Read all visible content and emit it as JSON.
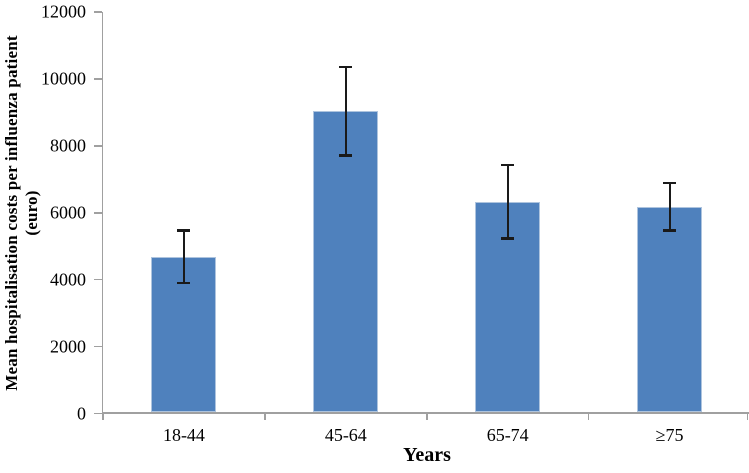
{
  "figure": {
    "background": "#ffffff"
  },
  "chart_data": {
    "type": "bar",
    "title": "",
    "xlabel": "Years",
    "ylabel": "Mean hospitalisation costs per influenza patient (euro)",
    "ylabel_lines": [
      "Mean hospitalisation costs per influenza patient",
      "(euro)"
    ],
    "categories": [
      "18-44",
      "45-64",
      "65-74",
      "≥75"
    ],
    "values": [
      4670,
      9040,
      6320,
      6170
    ],
    "error_upper": [
      5480,
      10360,
      7430,
      6890
    ],
    "error_lower": [
      3900,
      7700,
      5220,
      5460
    ],
    "ylim": [
      0,
      12000
    ],
    "ytick_interval": 2000,
    "ytick_labels": [
      "0",
      "2000",
      "4000",
      "6000",
      "8000",
      "10000",
      "12000"
    ],
    "grid": "off",
    "legend": "none",
    "bar_color": "#4f81bd",
    "bar_border_color": "#aec4de",
    "error_bar_color": "#1a1a1a",
    "axis_color": "#a0a0a0",
    "text_color": "#000000"
  }
}
